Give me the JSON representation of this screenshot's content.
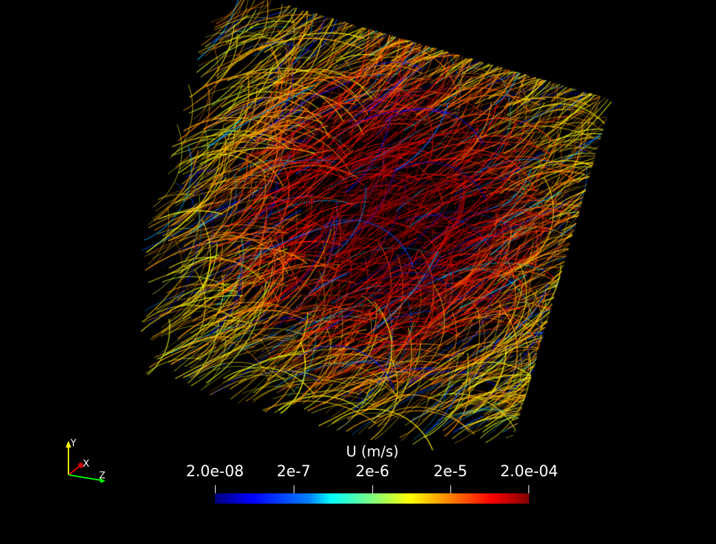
{
  "scalar_bar": {
    "title": "U (m/s)",
    "labels": [
      "2.0e-08",
      "2e-7",
      "2e-6",
      "2e-5",
      "2.0e-04"
    ],
    "range": [
      "2.0e-08",
      "2.0e-04"
    ],
    "colormap": [
      "#00007f",
      "#0000ff",
      "#0080ff",
      "#00ffff",
      "#7fff7f",
      "#ffff00",
      "#ff8000",
      "#ff0000",
      "#7f0000"
    ]
  },
  "orientation_axes": {
    "y_label": "Y",
    "x_label": "X",
    "z_label": "Z",
    "colors": {
      "y": "#ffff00",
      "x": "#ff0000",
      "z": "#00ff00"
    }
  },
  "background_color": "#000000"
}
